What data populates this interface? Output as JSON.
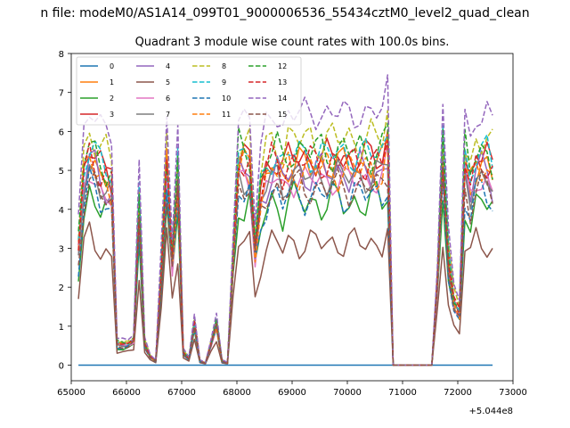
{
  "chart_data": {
    "type": "line",
    "suptitle": "n file: modeM0/AS1A14_099T01_9000006536_55434cztM0_level2_quad_clean",
    "title": "Quadrant 3 module wise count rates with 100.0s bins.",
    "xlabel": "",
    "ylabel": "",
    "x_offset_label": "+5.044e8",
    "xlim": [
      65000,
      73000
    ],
    "ylim": [
      -0.4,
      8.0
    ],
    "xticks": [
      65000,
      66000,
      67000,
      68000,
      69000,
      70000,
      71000,
      72000,
      73000
    ],
    "xtick_labels": [
      "65000",
      "66000",
      "67000",
      "68000",
      "69000",
      "70000",
      "71000",
      "72000",
      "73000"
    ],
    "yticks": [
      0,
      1,
      2,
      3,
      4,
      5,
      6,
      7,
      8
    ],
    "ytick_labels": [
      "0",
      "1",
      "2",
      "3",
      "4",
      "5",
      "6",
      "7",
      "8"
    ],
    "x": [
      65130,
      65230,
      65330,
      65430,
      65530,
      65630,
      65730,
      65830,
      65930,
      66030,
      66130,
      66230,
      66330,
      66430,
      66530,
      66630,
      66730,
      66830,
      66930,
      67030,
      67130,
      67230,
      67330,
      67430,
      67530,
      67630,
      67730,
      67830,
      67930,
      68030,
      68130,
      68230,
      68330,
      68430,
      68530,
      68630,
      68730,
      68830,
      68930,
      69030,
      69130,
      69230,
      69330,
      69430,
      69530,
      69630,
      69730,
      69830,
      69930,
      70030,
      70130,
      70230,
      70330,
      70430,
      70530,
      70630,
      70730,
      70830,
      70930,
      71030,
      71130,
      71230,
      71330,
      71430,
      71530,
      71630,
      71730,
      71830,
      71930,
      72030,
      72130,
      72230,
      72330,
      72430,
      72530,
      72630
    ],
    "series": [
      {
        "name": "0",
        "color": "#1f77b4",
        "dash": "solid",
        "base": 0.0,
        "amp": 0.0,
        "phase": 0
      },
      {
        "name": "1",
        "color": "#ff7f0e",
        "dash": "solid",
        "base": 5.4,
        "amp": 0.35,
        "phase": 1
      },
      {
        "name": "2",
        "color": "#2ca02c",
        "dash": "solid",
        "base": 4.4,
        "amp": 0.4,
        "phase": 2
      },
      {
        "name": "3",
        "color": "#d62728",
        "dash": "solid",
        "base": 5.6,
        "amp": 0.35,
        "phase": 3
      },
      {
        "name": "4",
        "color": "#9467bd",
        "dash": "solid",
        "base": 5.2,
        "amp": 0.4,
        "phase": 4
      },
      {
        "name": "5",
        "color": "#8c564b",
        "dash": "solid",
        "base": 3.3,
        "amp": 0.3,
        "phase": 5
      },
      {
        "name": "6",
        "color": "#e377c2",
        "dash": "solid",
        "base": 5.0,
        "amp": 0.3,
        "phase": 6
      },
      {
        "name": "7",
        "color": "#7f7f7f",
        "dash": "solid",
        "base": 5.1,
        "amp": 0.35,
        "phase": 7
      },
      {
        "name": "8",
        "color": "#bcbd22",
        "dash": "dashed",
        "base": 6.1,
        "amp": 0.4,
        "phase": 8
      },
      {
        "name": "9",
        "color": "#17becf",
        "dash": "dashed",
        "base": 5.7,
        "amp": 0.35,
        "phase": 9
      },
      {
        "name": "10",
        "color": "#1f77b4",
        "dash": "dashed",
        "base": 4.6,
        "amp": 0.35,
        "phase": 10
      },
      {
        "name": "11",
        "color": "#ff7f0e",
        "dash": "dashed",
        "base": 5.3,
        "amp": 0.4,
        "phase": 11
      },
      {
        "name": "12",
        "color": "#2ca02c",
        "dash": "dashed",
        "base": 5.8,
        "amp": 0.4,
        "phase": 12
      },
      {
        "name": "13",
        "color": "#d62728",
        "dash": "dashed",
        "base": 5.5,
        "amp": 0.35,
        "phase": 13
      },
      {
        "name": "14",
        "color": "#9467bd",
        "dash": "dashed",
        "base": 6.8,
        "amp": 0.3,
        "phase": 14
      },
      {
        "name": "15",
        "color": "#8c564b",
        "dash": "dashed",
        "base": 4.8,
        "amp": 0.35,
        "phase": 15
      }
    ],
    "envelope": [
      0.55,
      0.9,
      1.0,
      0.95,
      0.9,
      0.88,
      0.85,
      0.1,
      0.1,
      0.1,
      0.12,
      0.75,
      0.1,
      0.04,
      0.02,
      0.45,
      0.95,
      0.5,
      0.9,
      0.06,
      0.03,
      0.2,
      0.02,
      0.01,
      0.1,
      0.2,
      0.02,
      0.01,
      0.5,
      0.95,
      0.95,
      0.95,
      0.55,
      0.8,
      0.9,
      0.95,
      0.95,
      0.9,
      0.95,
      0.95,
      0.95,
      0.95,
      0.95,
      0.95,
      0.95,
      0.95,
      0.95,
      0.95,
      0.95,
      0.95,
      0.95,
      0.95,
      0.95,
      0.95,
      0.95,
      0.95,
      1.05,
      0.0,
      0.0,
      0.0,
      0.0,
      0.0,
      0.0,
      0.0,
      0.0,
      0.4,
      1.0,
      0.5,
      0.3,
      0.25,
      0.95,
      0.85,
      0.95,
      0.95,
      0.95,
      0.9
    ],
    "legend": {
      "location": "top-left",
      "columns": 4
    }
  }
}
